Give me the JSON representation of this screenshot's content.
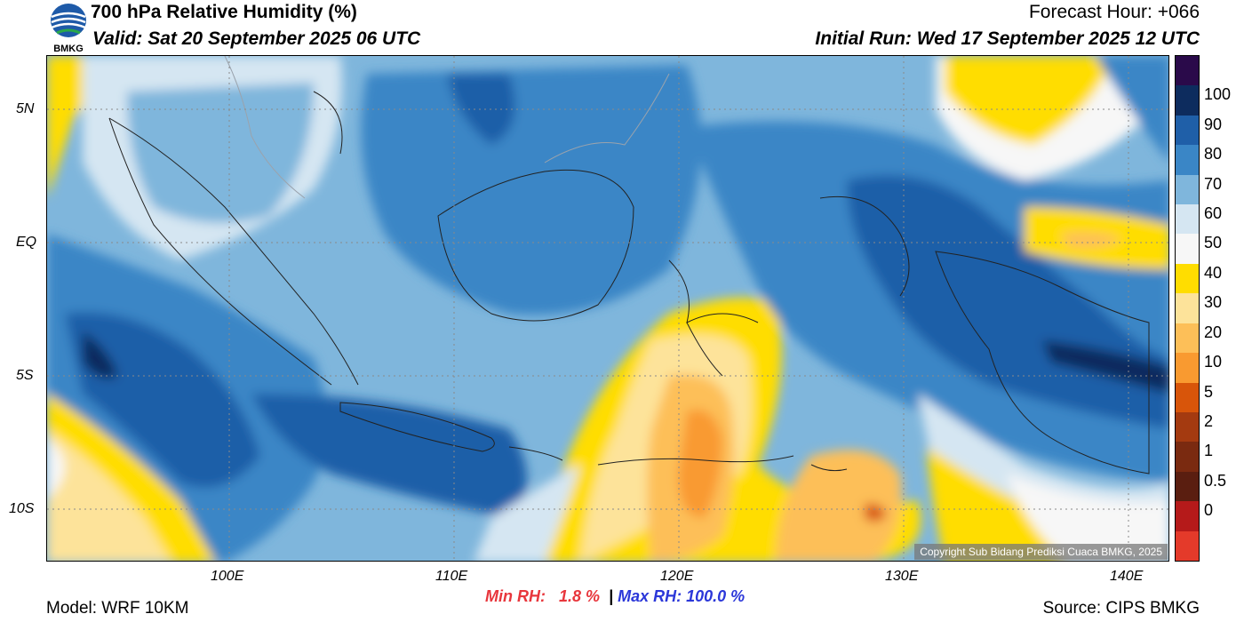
{
  "header": {
    "title": "700 hPa Relative Humidity (%)",
    "valid": "Valid: Sat 20 September 2025 06 UTC",
    "forecast_hour": "Forecast Hour: +066",
    "initial_run": "Initial Run: Wed 17 September 2025 12 UTC"
  },
  "logo": {
    "text": "BMKG"
  },
  "map": {
    "lat_labels": [
      "5N",
      "EQ",
      "5S",
      "10S"
    ],
    "lon_labels": [
      "100E",
      "110E",
      "120E",
      "130E",
      "140E"
    ],
    "copyright": "Copyright Sub Bidang Prediksi Cuaca BMKG, 2025"
  },
  "stats": {
    "min_label": "Min RH:",
    "min_value": "1.8 %",
    "max_label": "Max RH: 100.0 %"
  },
  "footer": {
    "model": "Model: WRF 10KM",
    "source": "Source: CIPS BMKG"
  },
  "colorbar": {
    "labels": [
      "100",
      "90",
      "80",
      "70",
      "60",
      "50",
      "40",
      "30",
      "20",
      "10",
      "5",
      "2",
      "1",
      "0.5",
      "0"
    ],
    "colors": [
      "#2a0a4a",
      "#0d2c5e",
      "#1f5fa8",
      "#3a86c6",
      "#7fb6dc",
      "#d5e6f2",
      "#f7f7f7",
      "#ffdd00",
      "#fde39a",
      "#fdbf58",
      "#f99a30",
      "#d8550a",
      "#a43a10",
      "#7a2a10",
      "#5a1e10",
      "#b51a1a",
      "#e43a2a"
    ]
  },
  "colors": {
    "rh_90": "#0d2c5e",
    "rh_80": "#1f5fa8",
    "rh_70": "#3a86c6",
    "rh_60": "#7fb6dc",
    "rh_50": "#d5e6f2",
    "rh_40": "#f7f7f7",
    "rh_30": "#ffdd00",
    "rh_20": "#fde39a",
    "rh_10": "#fdbf58",
    "rh_5": "#f99a30",
    "rh_2": "#d8550a",
    "min_text": "#e8363c",
    "max_text": "#2b37d9"
  }
}
